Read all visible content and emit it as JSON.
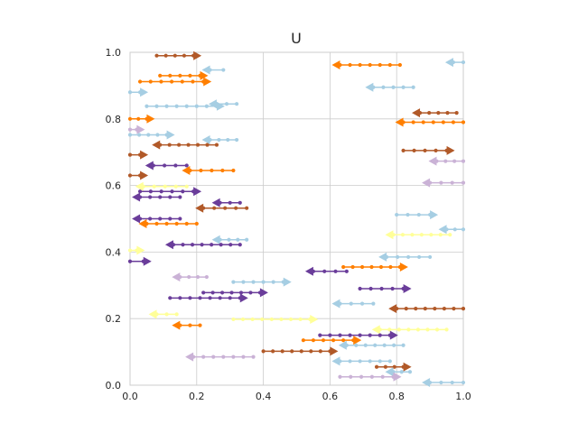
{
  "chart_data": {
    "type": "line",
    "title": "U",
    "xlabel": "",
    "ylabel": "",
    "xlim": [
      0,
      1
    ],
    "ylim": [
      0,
      1
    ],
    "grid": true,
    "xticks": [
      "0.0",
      "0.2",
      "0.4",
      "0.6",
      "0.8",
      "1.0"
    ],
    "yticks": [
      "0.0",
      "0.2",
      "0.4",
      "0.6",
      "0.8",
      "1.0"
    ],
    "colors": {
      "light_blue": "#a6cee3",
      "orange": "#ff7f00",
      "brown": "#b15928",
      "purple": "#6a3d9a",
      "lavender": "#cab2d6",
      "yellow": "#ffff99"
    },
    "series": [
      {
        "color": "brown",
        "x0": 0.08,
        "x1": 0.19,
        "y": 0.99,
        "dir": "right"
      },
      {
        "color": "orange",
        "x0": 0.09,
        "x1": 0.21,
        "y": 0.93,
        "dir": "right"
      },
      {
        "color": "light_blue",
        "x0": 0.24,
        "x1": 0.28,
        "y": 0.947,
        "dir": "left"
      },
      {
        "color": "orange",
        "x0": 0.03,
        "x1": 0.22,
        "y": 0.912,
        "dir": "right"
      },
      {
        "color": "light_blue",
        "x0": 0.0,
        "x1": 0.03,
        "y": 0.88,
        "dir": "right"
      },
      {
        "color": "light_blue",
        "x0": 0.26,
        "x1": 0.32,
        "y": 0.845,
        "dir": "left"
      },
      {
        "color": "light_blue",
        "x0": 0.05,
        "x1": 0.26,
        "y": 0.838,
        "dir": "right"
      },
      {
        "color": "orange",
        "x0": 0.0,
        "x1": 0.05,
        "y": 0.8,
        "dir": "right"
      },
      {
        "color": "lavender",
        "x0": 0.0,
        "x1": 0.02,
        "y": 0.768,
        "dir": "right"
      },
      {
        "color": "light_blue",
        "x0": 0.0,
        "x1": 0.11,
        "y": 0.752,
        "dir": "right"
      },
      {
        "color": "light_blue",
        "x0": 0.24,
        "x1": 0.32,
        "y": 0.737,
        "dir": "left"
      },
      {
        "color": "brown",
        "x0": 0.09,
        "x1": 0.26,
        "y": 0.722,
        "dir": "left"
      },
      {
        "color": "brown",
        "x0": 0.0,
        "x1": 0.03,
        "y": 0.692,
        "dir": "right"
      },
      {
        "color": "purple",
        "x0": 0.07,
        "x1": 0.17,
        "y": 0.66,
        "dir": "left"
      },
      {
        "color": "orange",
        "x0": 0.18,
        "x1": 0.31,
        "y": 0.645,
        "dir": "left"
      },
      {
        "color": "brown",
        "x0": 0.0,
        "x1": 0.03,
        "y": 0.63,
        "dir": "right"
      },
      {
        "color": "yellow",
        "x0": 0.04,
        "x1": 0.17,
        "y": 0.597,
        "dir": "left"
      },
      {
        "color": "purple",
        "x0": 0.03,
        "x1": 0.19,
        "y": 0.582,
        "dir": "right"
      },
      {
        "color": "purple",
        "x0": 0.03,
        "x1": 0.15,
        "y": 0.565,
        "dir": "left"
      },
      {
        "color": "purple",
        "x0": 0.27,
        "x1": 0.33,
        "y": 0.548,
        "dir": "left"
      },
      {
        "color": "brown",
        "x0": 0.22,
        "x1": 0.35,
        "y": 0.532,
        "dir": "left"
      },
      {
        "color": "purple",
        "x0": 0.03,
        "x1": 0.15,
        "y": 0.5,
        "dir": "left"
      },
      {
        "color": "orange",
        "x0": 0.05,
        "x1": 0.2,
        "y": 0.485,
        "dir": "left"
      },
      {
        "color": "light_blue",
        "x0": 0.27,
        "x1": 0.35,
        "y": 0.437,
        "dir": "left"
      },
      {
        "color": "purple",
        "x0": 0.13,
        "x1": 0.33,
        "y": 0.422,
        "dir": "left"
      },
      {
        "color": "yellow",
        "x0": 0.0,
        "x1": 0.02,
        "y": 0.405,
        "dir": "right"
      },
      {
        "color": "purple",
        "x0": 0.0,
        "x1": 0.04,
        "y": 0.372,
        "dir": "right"
      },
      {
        "color": "lavender",
        "x0": 0.15,
        "x1": 0.23,
        "y": 0.325,
        "dir": "left"
      },
      {
        "color": "light_blue",
        "x0": 0.31,
        "x1": 0.46,
        "y": 0.31,
        "dir": "right"
      },
      {
        "color": "purple",
        "x0": 0.22,
        "x1": 0.39,
        "y": 0.278,
        "dir": "right"
      },
      {
        "color": "purple",
        "x0": 0.12,
        "x1": 0.33,
        "y": 0.262,
        "dir": "right"
      },
      {
        "color": "yellow",
        "x0": 0.08,
        "x1": 0.14,
        "y": 0.213,
        "dir": "left"
      },
      {
        "color": "orange",
        "x0": 0.15,
        "x1": 0.21,
        "y": 0.18,
        "dir": "left"
      },
      {
        "color": "lavender",
        "x0": 0.19,
        "x1": 0.37,
        "y": 0.085,
        "dir": "left"
      },
      {
        "color": "orange",
        "x0": 0.63,
        "x1": 0.81,
        "y": 0.962,
        "dir": "left"
      },
      {
        "color": "light_blue",
        "x0": 0.97,
        "x1": 1.0,
        "y": 0.97,
        "dir": "left"
      },
      {
        "color": "light_blue",
        "x0": 0.73,
        "x1": 0.85,
        "y": 0.895,
        "dir": "left"
      },
      {
        "color": "brown",
        "x0": 0.87,
        "x1": 0.98,
        "y": 0.818,
        "dir": "left"
      },
      {
        "color": "orange",
        "x0": 0.82,
        "x1": 1.0,
        "y": 0.79,
        "dir": "left"
      },
      {
        "color": "brown",
        "x0": 0.82,
        "x1": 0.95,
        "y": 0.705,
        "dir": "right"
      },
      {
        "color": "lavender",
        "x0": 0.92,
        "x1": 1.0,
        "y": 0.673,
        "dir": "left"
      },
      {
        "color": "lavender",
        "x0": 0.9,
        "x1": 1.0,
        "y": 0.608,
        "dir": "left"
      },
      {
        "color": "light_blue",
        "x0": 0.8,
        "x1": 0.9,
        "y": 0.512,
        "dir": "right"
      },
      {
        "color": "light_blue",
        "x0": 0.95,
        "x1": 1.0,
        "y": 0.468,
        "dir": "left"
      },
      {
        "color": "yellow",
        "x0": 0.79,
        "x1": 0.96,
        "y": 0.452,
        "dir": "left"
      },
      {
        "color": "light_blue",
        "x0": 0.77,
        "x1": 0.9,
        "y": 0.385,
        "dir": "left"
      },
      {
        "color": "orange",
        "x0": 0.64,
        "x1": 0.81,
        "y": 0.355,
        "dir": "right"
      },
      {
        "color": "purple",
        "x0": 0.55,
        "x1": 0.65,
        "y": 0.342,
        "dir": "left"
      },
      {
        "color": "purple",
        "x0": 0.69,
        "x1": 0.82,
        "y": 0.29,
        "dir": "right"
      },
      {
        "color": "light_blue",
        "x0": 0.63,
        "x1": 0.73,
        "y": 0.245,
        "dir": "left"
      },
      {
        "color": "brown",
        "x0": 0.8,
        "x1": 1.0,
        "y": 0.23,
        "dir": "left"
      },
      {
        "color": "yellow",
        "x0": 0.31,
        "x1": 0.54,
        "y": 0.198,
        "dir": "right"
      },
      {
        "color": "yellow",
        "x0": 0.75,
        "x1": 0.95,
        "y": 0.167,
        "dir": "left"
      },
      {
        "color": "purple",
        "x0": 0.57,
        "x1": 0.78,
        "y": 0.15,
        "dir": "right"
      },
      {
        "color": "orange",
        "x0": 0.52,
        "x1": 0.67,
        "y": 0.135,
        "dir": "right"
      },
      {
        "color": "light_blue",
        "x0": 0.65,
        "x1": 0.82,
        "y": 0.12,
        "dir": "left"
      },
      {
        "color": "brown",
        "x0": 0.4,
        "x1": 0.6,
        "y": 0.102,
        "dir": "right"
      },
      {
        "color": "light_blue",
        "x0": 0.63,
        "x1": 0.78,
        "y": 0.072,
        "dir": "left"
      },
      {
        "color": "brown",
        "x0": 0.74,
        "x1": 0.82,
        "y": 0.055,
        "dir": "right"
      },
      {
        "color": "light_blue",
        "x0": 0.79,
        "x1": 0.84,
        "y": 0.04,
        "dir": "left"
      },
      {
        "color": "lavender",
        "x0": 0.63,
        "x1": 0.79,
        "y": 0.025,
        "dir": "right"
      },
      {
        "color": "light_blue",
        "x0": 0.9,
        "x1": 1.0,
        "y": 0.008,
        "dir": "left"
      }
    ]
  }
}
